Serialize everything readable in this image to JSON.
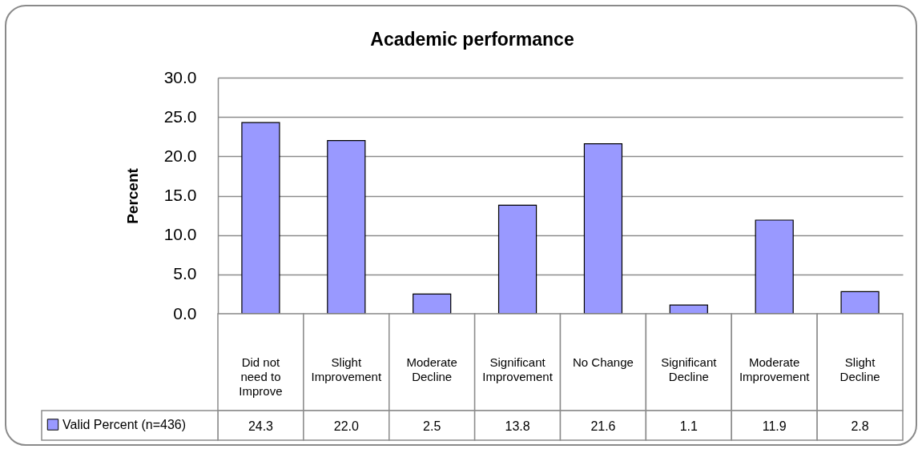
{
  "chart_data": {
    "type": "bar",
    "title": "Academic performance",
    "ylabel": "Percent",
    "categories": [
      "Did not need to Improve",
      "Slight Improvement",
      "Moderate Decline",
      "Significant Improvement",
      "No Change",
      "Significant Decline",
      "Moderate Improvement",
      "Slight Decline"
    ],
    "series": [
      {
        "name": "Valid Percent (n=436)",
        "color": "#9999ff",
        "values": [
          24.3,
          22.0,
          2.5,
          13.8,
          21.6,
          1.1,
          11.9,
          2.8
        ],
        "value_labels": [
          "24.3",
          "22.0",
          "2.5",
          "13.8",
          "21.6",
          "1.1",
          "11.9",
          "2.8"
        ]
      }
    ],
    "ylim": [
      0,
      30
    ],
    "yticks": [
      {
        "value": 0,
        "label": "0.0"
      },
      {
        "value": 5,
        "label": "5.0"
      },
      {
        "value": 10,
        "label": "10.0"
      },
      {
        "value": 15,
        "label": "15.0"
      },
      {
        "value": 20,
        "label": "20.0"
      },
      {
        "value": 25,
        "label": "25.0"
      },
      {
        "value": 30,
        "label": "30.0"
      }
    ],
    "grid": "y",
    "legend": "bottom left"
  }
}
